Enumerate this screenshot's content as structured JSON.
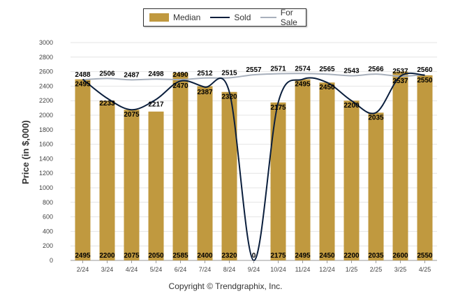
{
  "footer": "Copyright © Trendgraphix, Inc.",
  "chart_data": {
    "type": "bar",
    "ylabel": "Price (in $,000)",
    "xlabel": "",
    "ylim": [
      0,
      3000
    ],
    "yticks": [
      0,
      200,
      400,
      600,
      800,
      1000,
      1200,
      1400,
      1600,
      1800,
      2000,
      2200,
      2400,
      2600,
      2800,
      3000
    ],
    "grid": true,
    "legend_position": "top",
    "categories": [
      "2/24",
      "3/24",
      "4/24",
      "5/24",
      "6/24",
      "7/24",
      "8/24",
      "9/24",
      "10/24",
      "11/24",
      "12/24",
      "1/25",
      "2/25",
      "3/25",
      "4/25"
    ],
    "series": [
      {
        "name": "Median",
        "kind": "bar",
        "color": "#c0993f",
        "values": [
          2495,
          2200,
          2075,
          2050,
          2585,
          2400,
          2320,
          0,
          2175,
          2495,
          2450,
          2200,
          2035,
          2600,
          2550
        ]
      },
      {
        "name": "Sold",
        "kind": "line",
        "color": "#0a1e3c",
        "values": [
          2495,
          2233,
          2075,
          2217,
          2470,
          2387,
          2320,
          0,
          2175,
          2495,
          2450,
          2200,
          2035,
          2537,
          2550
        ]
      },
      {
        "name": "For Sale",
        "kind": "line",
        "color": "#a8b0bc",
        "values": [
          2488,
          2506,
          2487,
          2498,
          2490,
          2512,
          2515,
          2557,
          2571,
          2574,
          2565,
          2543,
          2566,
          2537,
          2560
        ]
      }
    ]
  }
}
